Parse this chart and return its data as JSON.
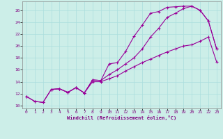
{
  "xlabel": "Windchill (Refroidissement éolien,°C)",
  "bg_color": "#cceee8",
  "grid_color": "#aadddd",
  "line_color": "#990099",
  "xlim": [
    -0.5,
    23.5
  ],
  "ylim": [
    9.5,
    27.5
  ],
  "xticks": [
    0,
    1,
    2,
    3,
    4,
    5,
    6,
    7,
    8,
    9,
    10,
    11,
    12,
    13,
    14,
    15,
    16,
    17,
    18,
    19,
    20,
    21,
    22,
    23
  ],
  "yticks": [
    10,
    12,
    14,
    16,
    18,
    20,
    22,
    24,
    26
  ],
  "line1_x": [
    0,
    1,
    2,
    3,
    4,
    5,
    6,
    7,
    8,
    9,
    10,
    11,
    12,
    13,
    14,
    15,
    16,
    17,
    18,
    19,
    20,
    21,
    22,
    23
  ],
  "line1_y": [
    11.5,
    10.7,
    10.5,
    12.7,
    12.8,
    12.2,
    13.0,
    12.1,
    14.3,
    14.2,
    17.0,
    17.2,
    19.1,
    21.6,
    23.5,
    25.5,
    25.8,
    26.5,
    26.6,
    26.7,
    26.7,
    26.0,
    24.2,
    19.5
  ],
  "line2_x": [
    0,
    1,
    2,
    3,
    4,
    5,
    6,
    7,
    8,
    9,
    10,
    11,
    12,
    13,
    14,
    15,
    16,
    17,
    18,
    19,
    20,
    21,
    22,
    23
  ],
  "line2_y": [
    11.5,
    10.7,
    10.5,
    12.7,
    12.8,
    12.2,
    13.0,
    12.1,
    14.0,
    14.0,
    14.5,
    15.0,
    15.8,
    16.5,
    17.2,
    17.8,
    18.4,
    19.0,
    19.5,
    20.0,
    20.2,
    20.8,
    21.5,
    17.3
  ],
  "line3_x": [
    3,
    4,
    5,
    6,
    7,
    8,
    9,
    10,
    11,
    12,
    13,
    14,
    15,
    16,
    17,
    18,
    19,
    20,
    21,
    22,
    23
  ],
  "line3_y": [
    12.7,
    12.8,
    12.2,
    13.0,
    12.1,
    14.3,
    14.2,
    15.2,
    16.0,
    17.0,
    18.0,
    19.5,
    21.5,
    23.0,
    24.8,
    25.5,
    26.3,
    26.7,
    26.0,
    24.2,
    19.5
  ]
}
